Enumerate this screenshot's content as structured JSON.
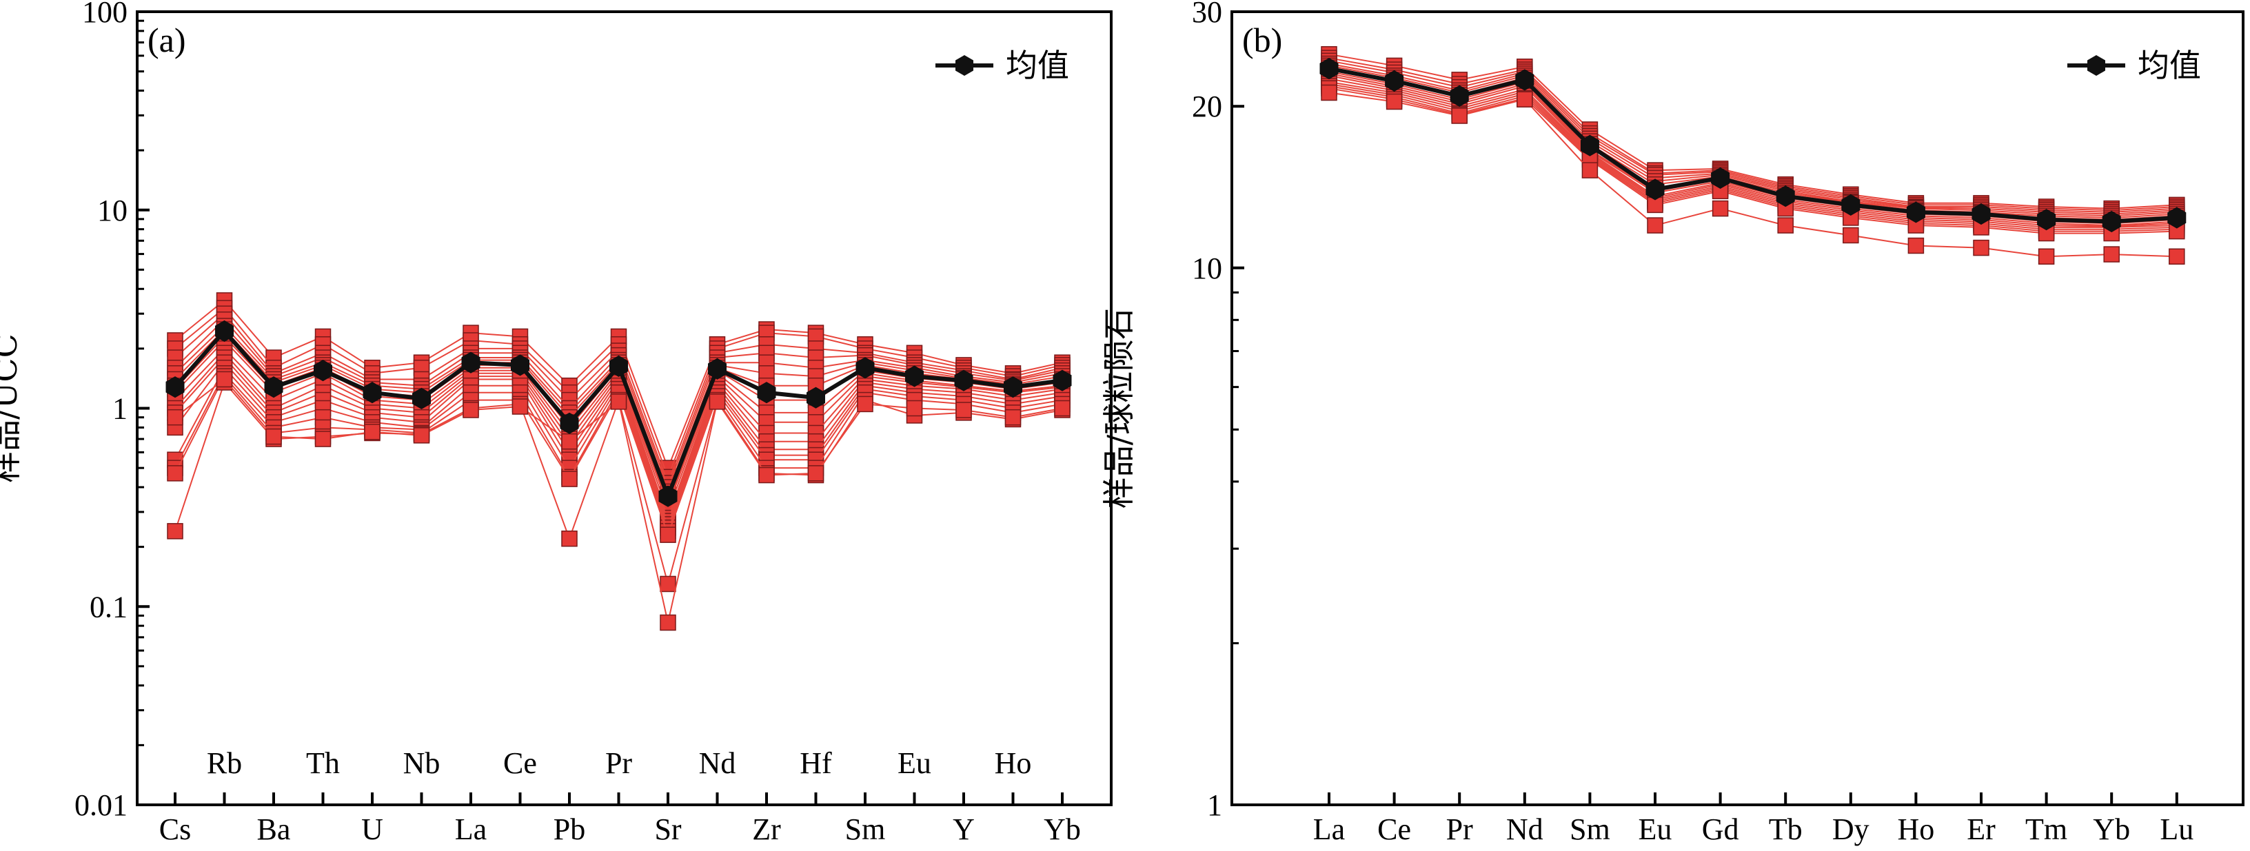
{
  "colors": {
    "sample_line": "#e8453c",
    "sample_marker_fill": "#e53935",
    "sample_marker_edge": "#7a1a1a",
    "mean": "#111111"
  },
  "chart_data": [
    {
      "type": "line",
      "panel_label": "(a)",
      "ylabel": "样品/UCC",
      "yscale": "log",
      "ylim": [
        0.01,
        100
      ],
      "yticks": [
        "0.01",
        "0.1",
        "1",
        "10",
        "100"
      ],
      "categories": [
        "Cs",
        "Rb",
        "Ba",
        "Th",
        "U",
        "Nb",
        "La",
        "Ce",
        "Pb",
        "Pr",
        "Sr",
        "Nd",
        "Zr",
        "Hf",
        "Sm",
        "Eu",
        "Y",
        "Ho",
        "Yb"
      ],
      "legend": {
        "label": "均值",
        "position": "top-right"
      },
      "mean": [
        1.28,
        2.45,
        1.28,
        1.55,
        1.2,
        1.12,
        1.7,
        1.65,
        0.84,
        1.63,
        0.36,
        1.58,
        1.2,
        1.13,
        1.6,
        1.45,
        1.38,
        1.28,
        1.38
      ],
      "series": [
        {
          "values": [
            2.2,
            3.5,
            1.8,
            2.3,
            1.6,
            1.7,
            2.4,
            2.3,
            1.3,
            2.3,
            0.5,
            2.1,
            2.5,
            2.4,
            2.1,
            1.9,
            1.65,
            1.5,
            1.7
          ]
        },
        {
          "values": [
            2.0,
            3.2,
            1.6,
            2.1,
            1.5,
            1.6,
            2.2,
            2.1,
            1.2,
            2.1,
            0.45,
            2.0,
            2.4,
            2.3,
            2.0,
            1.8,
            1.6,
            1.45,
            1.65
          ]
        },
        {
          "values": [
            1.8,
            3.0,
            1.5,
            1.9,
            1.4,
            1.4,
            2.0,
            2.0,
            1.1,
            1.95,
            0.42,
            1.9,
            2.1,
            2.0,
            1.9,
            1.7,
            1.55,
            1.4,
            1.6
          ]
        },
        {
          "values": [
            1.6,
            2.8,
            1.45,
            1.8,
            1.35,
            1.3,
            1.9,
            1.9,
            1.0,
            1.85,
            0.4,
            1.8,
            1.9,
            1.8,
            1.85,
            1.65,
            1.5,
            1.38,
            1.55
          ]
        },
        {
          "values": [
            1.5,
            2.6,
            1.4,
            1.7,
            1.3,
            1.25,
            1.8,
            1.8,
            0.95,
            1.75,
            0.38,
            1.7,
            1.7,
            1.6,
            1.75,
            1.6,
            1.45,
            1.35,
            1.5
          ]
        },
        {
          "values": [
            1.4,
            2.5,
            1.35,
            1.65,
            1.25,
            1.2,
            1.75,
            1.75,
            0.9,
            1.7,
            0.37,
            1.65,
            1.5,
            1.45,
            1.7,
            1.55,
            1.42,
            1.32,
            1.45
          ]
        },
        {
          "values": [
            1.3,
            2.4,
            1.3,
            1.6,
            1.2,
            1.15,
            1.7,
            1.7,
            0.85,
            1.65,
            0.35,
            1.6,
            1.3,
            1.3,
            1.65,
            1.5,
            1.4,
            1.3,
            1.4
          ]
        },
        {
          "values": [
            1.25,
            2.3,
            1.25,
            1.55,
            1.15,
            1.1,
            1.65,
            1.65,
            0.8,
            1.6,
            0.33,
            1.55,
            1.1,
            1.1,
            1.6,
            1.45,
            1.37,
            1.28,
            1.38
          ]
        },
        {
          "values": [
            1.2,
            2.2,
            1.2,
            1.5,
            1.1,
            1.05,
            1.6,
            1.6,
            0.75,
            1.55,
            0.32,
            1.5,
            0.95,
            0.95,
            1.55,
            1.42,
            1.35,
            1.25,
            1.35
          ]
        },
        {
          "values": [
            1.1,
            2.0,
            1.1,
            1.4,
            1.05,
            1.0,
            1.55,
            1.55,
            0.7,
            1.5,
            0.3,
            1.45,
            0.85,
            0.85,
            1.5,
            1.38,
            1.3,
            1.22,
            1.3
          ]
        },
        {
          "values": [
            1.0,
            1.9,
            1.0,
            1.3,
            1.0,
            0.95,
            1.5,
            1.5,
            0.65,
            1.45,
            0.28,
            1.4,
            0.75,
            0.75,
            1.45,
            1.35,
            1.28,
            1.2,
            1.28
          ]
        },
        {
          "values": [
            0.95,
            1.8,
            0.95,
            1.2,
            0.95,
            0.9,
            1.45,
            1.45,
            0.6,
            1.4,
            0.27,
            1.35,
            0.68,
            0.68,
            1.4,
            1.3,
            1.25,
            1.15,
            1.25
          ]
        },
        {
          "values": [
            0.8,
            1.7,
            0.9,
            1.1,
            0.9,
            0.85,
            1.4,
            1.4,
            0.55,
            1.35,
            0.26,
            1.3,
            0.62,
            0.62,
            1.35,
            1.25,
            1.2,
            1.1,
            1.2
          ]
        },
        {
          "values": [
            0.55,
            1.6,
            0.85,
            1.0,
            0.85,
            0.8,
            1.3,
            1.3,
            0.5,
            1.3,
            0.25,
            1.25,
            0.58,
            0.58,
            1.3,
            1.2,
            1.15,
            1.05,
            1.15
          ]
        },
        {
          "values": [
            0.5,
            1.5,
            0.8,
            0.9,
            0.8,
            0.78,
            1.2,
            1.2,
            0.45,
            1.25,
            0.24,
            1.2,
            0.55,
            0.55,
            1.25,
            1.15,
            1.1,
            1.0,
            1.1
          ]
        },
        {
          "values": [
            0.47,
            1.45,
            0.75,
            0.8,
            0.78,
            0.75,
            1.1,
            1.1,
            0.44,
            1.2,
            0.23,
            1.15,
            0.5,
            0.5,
            1.2,
            1.1,
            1.05,
            0.95,
            1.05
          ]
        },
        {
          "values": [
            0.24,
            1.35,
            0.7,
            0.72,
            0.75,
            0.74,
            1.0,
            1.05,
            0.22,
            1.1,
            0.13,
            1.1,
            0.47,
            0.46,
            1.1,
            0.92,
            0.95,
            0.88,
            0.98
          ]
        },
        {
          "values": [
            0.9,
            1.4,
            0.72,
            0.7,
            0.76,
            0.73,
            0.98,
            1.02,
            0.68,
            1.08,
            0.083,
            1.08,
            0.46,
            0.47,
            1.05,
            1.0,
            0.98,
            0.9,
            1.0
          ]
        }
      ]
    },
    {
      "type": "line",
      "panel_label": "(b)",
      "ylabel": "样品/球粒陨石",
      "yscale": "log",
      "ylim": [
        1,
        30
      ],
      "yticks": [
        "1",
        "10",
        "20",
        "30"
      ],
      "categories": [
        "La",
        "Ce",
        "Pr",
        "Nd",
        "Sm",
        "Eu",
        "Gd",
        "Tb",
        "Dy",
        "Ho",
        "Er",
        "Tm",
        "Yb",
        "Lu"
      ],
      "legend": {
        "label": "均值",
        "position": "top-right"
      },
      "mean": [
        23.5,
        22.3,
        20.9,
        22.4,
        16.9,
        14.0,
        14.7,
        13.6,
        13.1,
        12.7,
        12.6,
        12.3,
        12.2,
        12.4
      ],
      "series": [
        {
          "values": [
            25.0,
            23.8,
            22.4,
            23.7,
            18.1,
            15.2,
            15.3,
            14.3,
            13.7,
            13.2,
            13.2,
            13.0,
            12.9,
            13.1
          ]
        },
        {
          "values": [
            24.6,
            23.4,
            22.0,
            23.4,
            17.8,
            15.0,
            15.2,
            14.2,
            13.6,
            13.1,
            13.1,
            12.9,
            12.8,
            13.0
          ]
        },
        {
          "values": [
            24.3,
            23.1,
            21.7,
            23.2,
            17.6,
            14.9,
            15.1,
            14.1,
            13.5,
            13.0,
            13.0,
            12.8,
            12.7,
            12.9
          ]
        },
        {
          "values": [
            24.0,
            22.8,
            21.4,
            23.0,
            17.4,
            14.7,
            15.0,
            14.0,
            13.4,
            12.95,
            12.9,
            12.7,
            12.6,
            12.8
          ]
        },
        {
          "values": [
            23.8,
            22.6,
            21.2,
            22.8,
            17.2,
            14.5,
            14.9,
            13.9,
            13.3,
            12.9,
            12.8,
            12.6,
            12.5,
            12.7
          ]
        },
        {
          "values": [
            23.6,
            22.4,
            21.0,
            22.6,
            17.0,
            14.3,
            14.8,
            13.8,
            13.25,
            12.8,
            12.7,
            12.5,
            12.4,
            12.6
          ]
        },
        {
          "values": [
            23.4,
            22.2,
            20.8,
            22.4,
            16.8,
            14.1,
            14.7,
            13.7,
            13.2,
            12.75,
            12.65,
            12.4,
            12.3,
            12.5
          ]
        },
        {
          "values": [
            23.2,
            22.0,
            20.6,
            22.2,
            16.6,
            13.9,
            14.6,
            13.6,
            13.1,
            12.7,
            12.6,
            12.3,
            12.2,
            12.4
          ]
        },
        {
          "values": [
            23.0,
            21.8,
            20.4,
            22.0,
            16.5,
            13.8,
            14.5,
            13.5,
            13.0,
            12.6,
            12.5,
            12.2,
            12.1,
            12.3
          ]
        },
        {
          "values": [
            22.8,
            21.6,
            20.2,
            21.8,
            16.4,
            13.6,
            14.4,
            13.4,
            12.9,
            12.5,
            12.4,
            12.1,
            12.0,
            12.2
          ]
        },
        {
          "values": [
            22.5,
            21.4,
            20.0,
            21.5,
            16.3,
            13.5,
            14.3,
            13.3,
            12.8,
            12.4,
            12.3,
            12.0,
            11.95,
            12.1
          ]
        },
        {
          "values": [
            22.2,
            21.2,
            19.8,
            21.3,
            16.2,
            13.4,
            14.2,
            13.2,
            12.7,
            12.3,
            12.2,
            11.9,
            11.9,
            12.0
          ]
        },
        {
          "values": [
            22.0,
            21.0,
            19.6,
            21.1,
            16.1,
            13.3,
            14.1,
            13.1,
            12.6,
            12.2,
            12.1,
            11.8,
            11.8,
            11.9
          ]
        },
        {
          "values": [
            21.8,
            20.8,
            19.4,
            20.9,
            16.0,
            13.2,
            14.0,
            13.0,
            12.5,
            12.1,
            12.0,
            11.7,
            11.7,
            11.8
          ]
        },
        {
          "values": [
            21.6,
            20.6,
            19.3,
            20.7,
            15.9,
            13.1,
            13.9,
            12.9,
            12.4,
            12.0,
            11.9,
            11.6,
            11.6,
            11.7
          ]
        },
        {
          "values": [
            21.2,
            20.4,
            19.2,
            20.6,
            15.2,
            12.0,
            12.9,
            12.0,
            11.5,
            11.0,
            10.9,
            10.5,
            10.6,
            10.5
          ]
        }
      ]
    }
  ]
}
